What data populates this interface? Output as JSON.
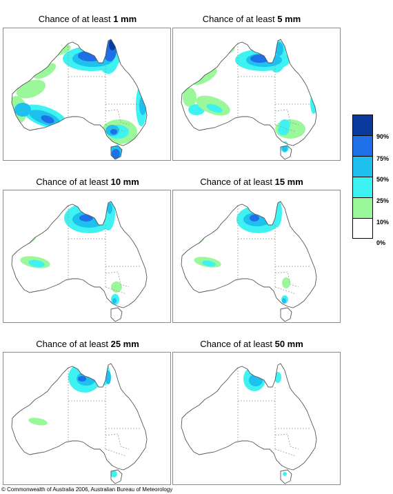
{
  "panels": [
    {
      "prefix": "Chance of at least",
      "amount": "1 mm"
    },
    {
      "prefix": "Chance of at least",
      "amount": "5 mm"
    },
    {
      "prefix": "Chance of at least",
      "amount": "10 mm"
    },
    {
      "prefix": "Chance of at least",
      "amount": "15 mm"
    },
    {
      "prefix": "Chance of at least",
      "amount": "25 mm"
    },
    {
      "prefix": "Chance of at least",
      "amount": "50 mm"
    }
  ],
  "legend": {
    "classes": [
      {
        "label": "90%",
        "color": "#0a3a9e"
      },
      {
        "label": "75%",
        "color": "#1f6fe8"
      },
      {
        "label": "50%",
        "color": "#1ec0ee"
      },
      {
        "label": "25%",
        "color": "#3ef2f2"
      },
      {
        "label": "10%",
        "color": "#9af79a"
      },
      {
        "label": "0%",
        "color": "#ffffff"
      }
    ]
  },
  "copyright": "© Commonwealth of Australia 2006, Australian Bureau of Meteorology"
}
